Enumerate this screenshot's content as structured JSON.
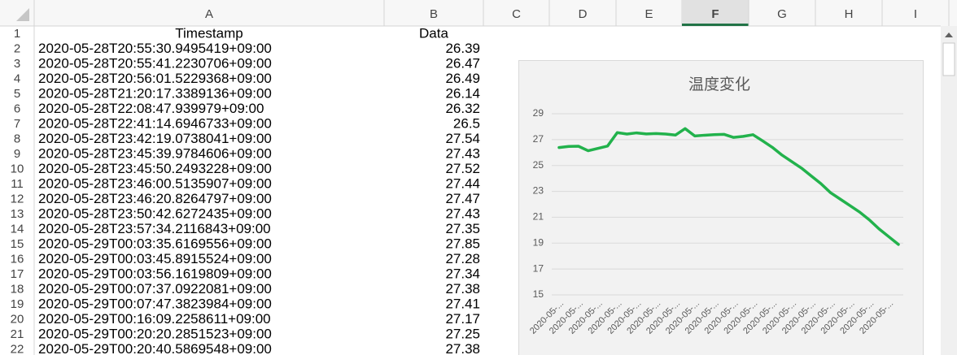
{
  "column_headers": [
    "A",
    "B",
    "C",
    "D",
    "E",
    "F",
    "G",
    "H",
    "I"
  ],
  "row_numbers": [
    1,
    2,
    3,
    4,
    5,
    6,
    7,
    8,
    9,
    10,
    11,
    12,
    13,
    14,
    15,
    16,
    17,
    18,
    19,
    20,
    21,
    22
  ],
  "table": {
    "header": [
      "Timestamp",
      "Data"
    ],
    "rows": [
      [
        "2020-05-28T20:55:30.9495419+09:00",
        26.39
      ],
      [
        "2020-05-28T20:55:41.2230706+09:00",
        26.47
      ],
      [
        "2020-05-28T20:56:01.5229368+09:00",
        26.49
      ],
      [
        "2020-05-28T21:20:17.3389136+09:00",
        26.14
      ],
      [
        "2020-05-28T22:08:47.939979+09:00",
        26.32
      ],
      [
        "2020-05-28T22:41:14.6946733+09:00",
        26.5
      ],
      [
        "2020-05-28T23:42:19.0738041+09:00",
        27.54
      ],
      [
        "2020-05-28T23:45:39.9784606+09:00",
        27.43
      ],
      [
        "2020-05-28T23:45:50.2493228+09:00",
        27.52
      ],
      [
        "2020-05-28T23:46:00.5135907+09:00",
        27.44
      ],
      [
        "2020-05-28T23:46:20.8264797+09:00",
        27.47
      ],
      [
        "2020-05-28T23:50:42.6272435+09:00",
        27.43
      ],
      [
        "2020-05-28T23:57:34.2116843+09:00",
        27.35
      ],
      [
        "2020-05-29T00:03:35.6169556+09:00",
        27.85
      ],
      [
        "2020-05-29T00:03:45.8915524+09:00",
        27.28
      ],
      [
        "2020-05-29T00:03:56.1619809+09:00",
        27.34
      ],
      [
        "2020-05-29T00:07:37.0922081+09:00",
        27.38
      ],
      [
        "2020-05-29T00:07:47.3823984+09:00",
        27.41
      ],
      [
        "2020-05-29T00:16:09.2258611+09:00",
        27.17
      ],
      [
        "2020-05-29T00:20:20.2851523+09:00",
        27.25
      ],
      [
        "2020-05-29T00:20:40.5869548+09:00",
        27.38
      ]
    ]
  },
  "chart_data": {
    "type": "line",
    "title": "温度変化",
    "color": "#22b24c",
    "categories": [
      "2020-05-...",
      null,
      "2020-05-...",
      null,
      "2020-05-...",
      null,
      "2020-05-...",
      null,
      "2020-05-...",
      null,
      "2020-05-...",
      null,
      "2020-05-...",
      null,
      "2020-05-...",
      null,
      "2020-05-...",
      null,
      "2020-05-...",
      null,
      "2020-05-...",
      null,
      "2020-05-...",
      null,
      "2020-05-...",
      null,
      "2020-05-...",
      null,
      "2020-05-...",
      null,
      "2020-05-...",
      null,
      "2020-05-...",
      null,
      "2020-05-...",
      null
    ],
    "values": [
      26.39,
      26.47,
      26.49,
      26.14,
      26.32,
      26.5,
      27.54,
      27.43,
      27.52,
      27.44,
      27.47,
      27.43,
      27.35,
      27.85,
      27.28,
      27.34,
      27.38,
      27.41,
      27.17,
      27.25,
      27.38,
      26.9,
      26.4,
      25.8,
      25.3,
      24.8,
      24.2,
      23.6,
      22.9,
      22.4,
      21.9,
      21.4,
      20.8,
      20.1,
      19.5,
      18.9
    ],
    "ylim": [
      15,
      29
    ],
    "yticks": [
      15,
      17,
      19,
      21,
      23,
      25,
      27,
      29
    ],
    "grid": true
  }
}
